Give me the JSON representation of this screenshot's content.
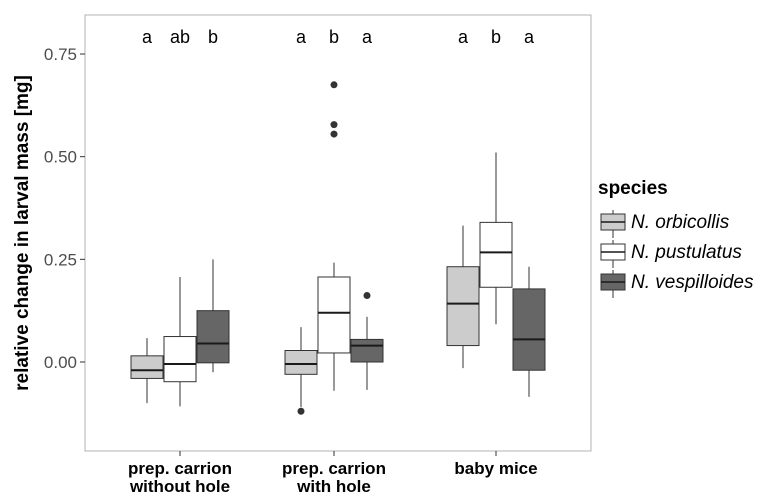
{
  "chart_data": {
    "type": "boxplot",
    "ylabel": "relative change in larval mass [mg]",
    "xlabel": "",
    "ylim": [
      -0.2,
      0.8
    ],
    "yticks": [
      0.0,
      0.25,
      0.5,
      0.75
    ],
    "ytick_labels": [
      "0.00",
      "0.25",
      "0.50",
      "0.75"
    ],
    "grid": false,
    "legend_position": "right",
    "categories": [
      {
        "label_lines": [
          "prep. carrion",
          "without hole"
        ]
      },
      {
        "label_lines": [
          "prep. carrion",
          "with hole"
        ]
      },
      {
        "label_lines": [
          "baby mice"
        ]
      }
    ],
    "legend": {
      "title": "species",
      "entries": [
        "N. orbicollis",
        "N. pustulatus",
        "N. vespilloides"
      ]
    },
    "series": [
      {
        "name": "N. orbicollis",
        "color": "#cccccc",
        "boxes": [
          {
            "whisker_low": -0.1,
            "q1": -0.04,
            "median": -0.02,
            "q3": 0.015,
            "whisker_high": 0.058,
            "outliers": []
          },
          {
            "whisker_low": -0.11,
            "q1": -0.03,
            "median": -0.005,
            "q3": 0.028,
            "whisker_high": 0.085,
            "outliers": [
              -0.12
            ]
          },
          {
            "whisker_low": -0.015,
            "q1": 0.04,
            "median": 0.142,
            "q3": 0.232,
            "whisker_high": 0.332,
            "outliers": []
          }
        ]
      },
      {
        "name": "N. pustulatus",
        "color": "#ffffff",
        "boxes": [
          {
            "whisker_low": -0.108,
            "q1": -0.048,
            "median": -0.005,
            "q3": 0.062,
            "whisker_high": 0.207,
            "outliers": []
          },
          {
            "whisker_low": -0.07,
            "q1": 0.022,
            "median": 0.12,
            "q3": 0.207,
            "whisker_high": 0.242,
            "outliers": [
              0.555,
              0.578,
              0.675
            ]
          },
          {
            "whisker_low": 0.092,
            "q1": 0.182,
            "median": 0.267,
            "q3": 0.34,
            "whisker_high": 0.51,
            "outliers": []
          }
        ]
      },
      {
        "name": "N. vespilloides",
        "color": "#666666",
        "boxes": [
          {
            "whisker_low": -0.025,
            "q1": -0.002,
            "median": 0.045,
            "q3": 0.125,
            "whisker_high": 0.25,
            "outliers": []
          },
          {
            "whisker_low": -0.068,
            "q1": 0.0,
            "median": 0.04,
            "q3": 0.055,
            "whisker_high": 0.11,
            "outliers": [
              0.162
            ]
          },
          {
            "whisker_low": -0.085,
            "q1": -0.02,
            "median": 0.055,
            "q3": 0.178,
            "whisker_high": 0.232,
            "outliers": []
          }
        ]
      }
    ],
    "significance_letters": [
      [
        "a",
        "ab",
        "b"
      ],
      [
        "a",
        "b",
        "a"
      ],
      [
        "a",
        "b",
        "a"
      ]
    ]
  }
}
